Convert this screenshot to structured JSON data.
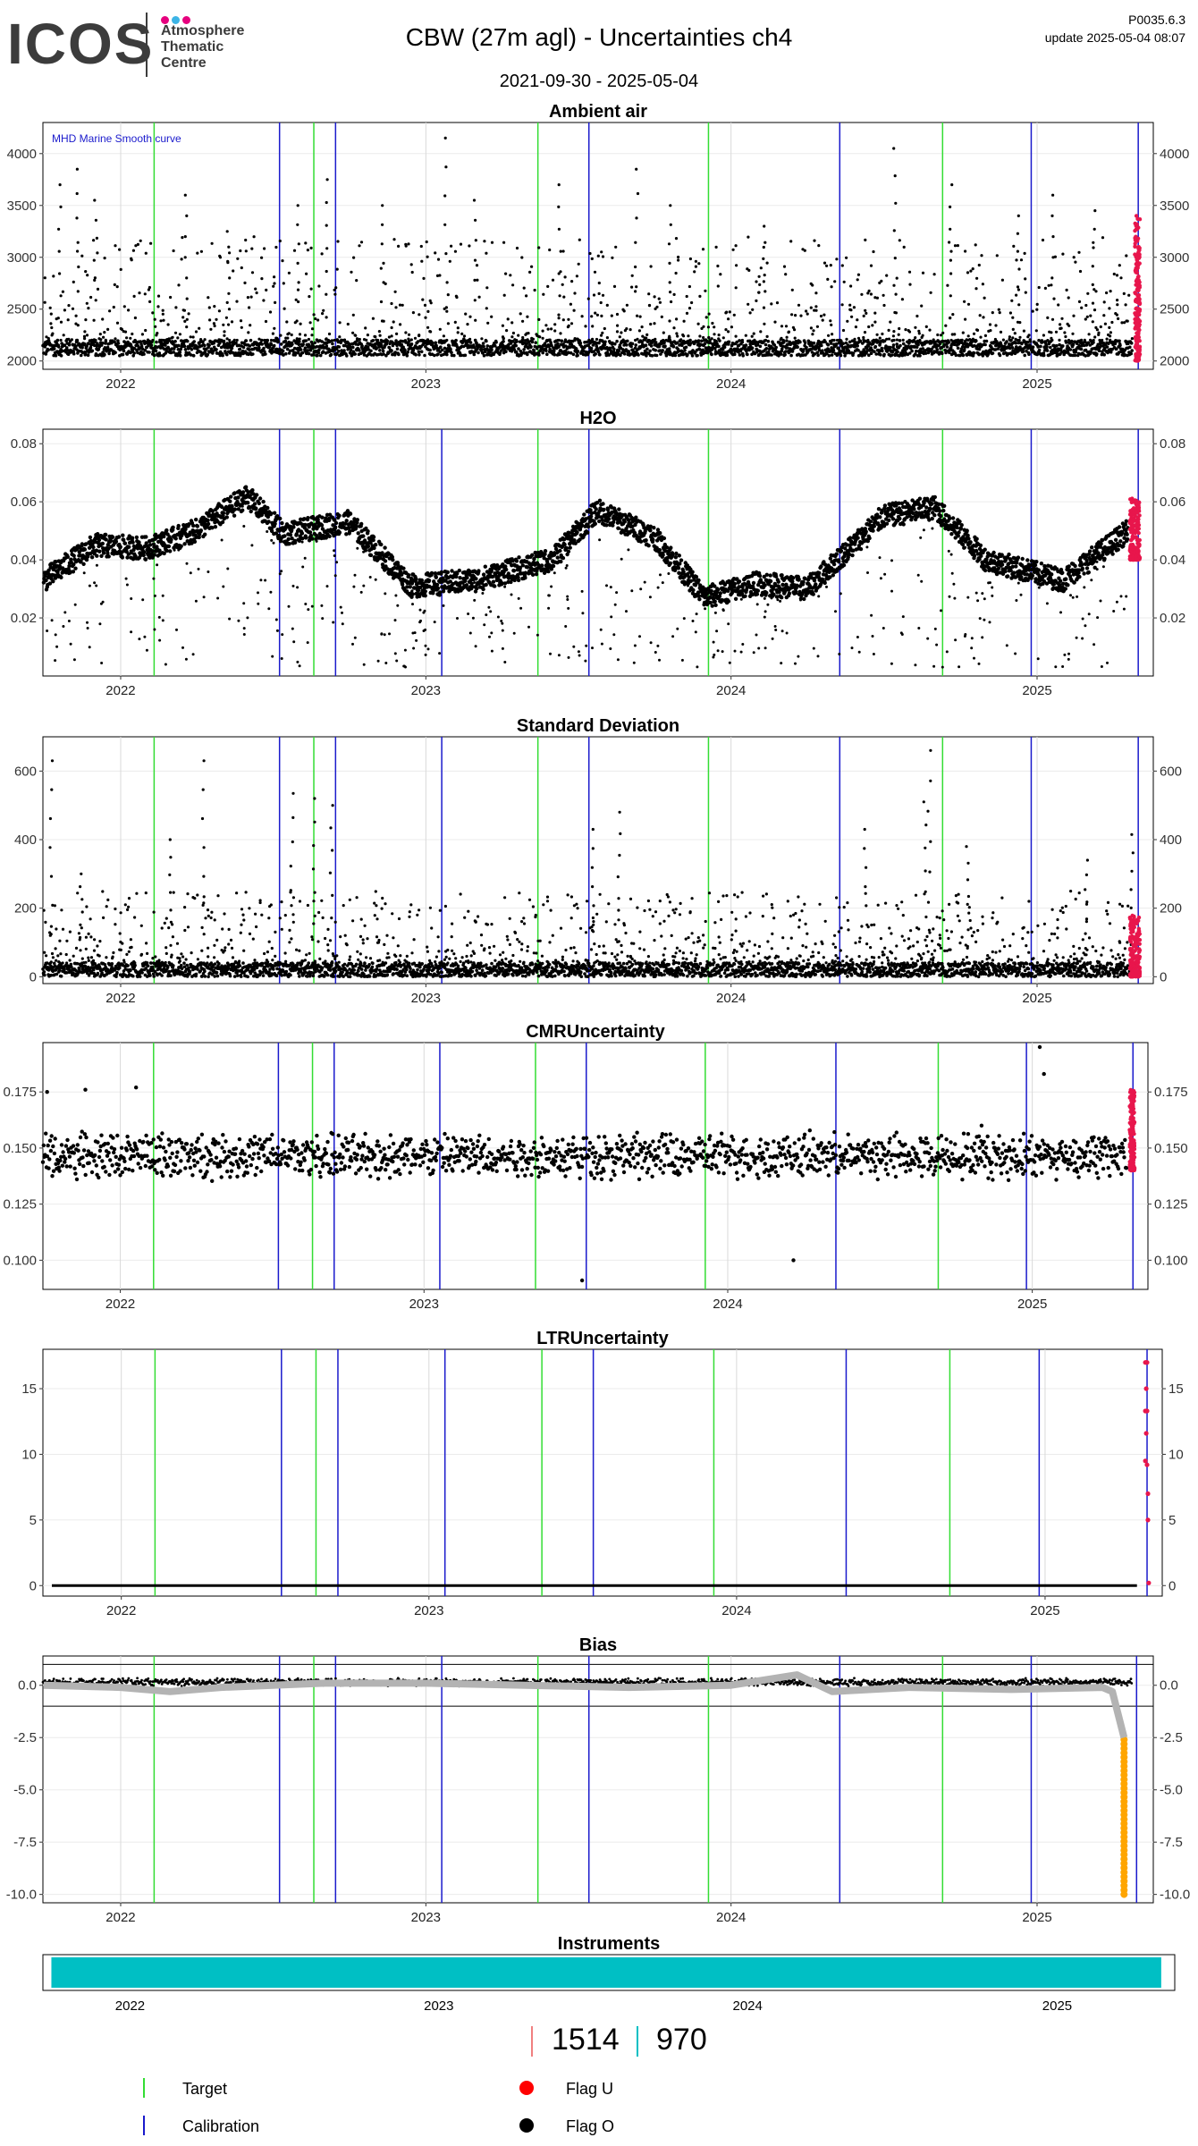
{
  "header": {
    "logo_text": "ICOS",
    "logo_sub": [
      "Atmosphere",
      "Thematic",
      "Centre"
    ],
    "title": "CBW  (27m agl) - Uncertainties ch4",
    "date_range": "2021-09-30 - 2025-05-04",
    "version": "P0035.6.3",
    "update": "update  2025-05-04 08:07"
  },
  "colors": {
    "target": "#33dd33",
    "calibration": "#1a1acc",
    "flag_u": "#ff0000",
    "flag_o": "#000000",
    "smooth_curve": "#b3b3b3",
    "bias_flag": "#ffa500",
    "instrument": "#00bfc4",
    "count_left": "#f08080",
    "count_right": "#00bfc4",
    "logo_dots": [
      "#e6007e",
      "#3cb4e6",
      "#e6007e"
    ]
  },
  "chart_data": [
    {
      "type": "scatter",
      "title": "Ambient air",
      "annotation": "MHD Marine Smooth curve",
      "xlim": [
        "2021-09-30",
        "2025-05-20"
      ],
      "ylim": [
        1920,
        4300
      ],
      "yticks": [
        2000,
        2500,
        3000,
        3500,
        4000
      ],
      "ytick_labels": [
        "2000",
        "2500",
        "3000",
        "3500",
        "4000"
      ],
      "xticks": [
        "2022-01-01",
        "2023-01-01",
        "2024-01-01",
        "2025-01-01"
      ],
      "xtick_labels": [
        "2022",
        "2023",
        "2024",
        "2025"
      ],
      "targets": [
        "2022-02-10",
        "2022-08-20",
        "2023-05-15",
        "2023-12-05",
        "2024-09-10"
      ],
      "calibrations": [
        "2022-07-10",
        "2022-09-15",
        "2023-07-15",
        "2024-05-10",
        "2024-12-25",
        "2025-05-02"
      ],
      "series": [
        {
          "name": "Flag O",
          "baseline": [
            2050,
            2200
          ],
          "spikes": [
            [
              "2021-10-20",
              3700
            ],
            [
              "2021-11-10",
              3850
            ],
            [
              "2021-12-01",
              3550
            ],
            [
              "2022-03-20",
              3600
            ],
            [
              "2022-05-10",
              3250
            ],
            [
              "2022-08-01",
              3500
            ],
            [
              "2022-09-05",
              3750
            ],
            [
              "2022-11-10",
              3500
            ],
            [
              "2023-01-25",
              4150
            ],
            [
              "2023-03-01",
              3550
            ],
            [
              "2023-06-10",
              3700
            ],
            [
              "2023-09-10",
              3850
            ],
            [
              "2023-10-20",
              3500
            ],
            [
              "2024-02-10",
              3300
            ],
            [
              "2024-07-15",
              4050
            ],
            [
              "2024-09-20",
              3700
            ],
            [
              "2024-12-10",
              3400
            ],
            [
              "2025-01-20",
              3600
            ],
            [
              "2025-03-10",
              3450
            ]
          ],
          "upper": [
            2400,
            3200
          ]
        },
        {
          "name": "Flag U",
          "range": [
            "2025-04-28",
            "2025-05-04"
          ],
          "values": [
            2000,
            3400
          ]
        }
      ]
    },
    {
      "type": "scatter",
      "title": "H2O",
      "xlim": [
        "2021-09-30",
        "2025-05-20"
      ],
      "ylim": [
        0.0,
        0.085
      ],
      "yticks": [
        0.02,
        0.04,
        0.06,
        0.08
      ],
      "ytick_labels": [
        "0.02",
        "0.04",
        "0.06",
        "0.08"
      ],
      "xticks": [
        "2022-01-01",
        "2023-01-01",
        "2024-01-01",
        "2025-01-01"
      ],
      "xtick_labels": [
        "2022",
        "2023",
        "2024",
        "2025"
      ],
      "targets": [
        "2022-02-10",
        "2022-08-20",
        "2023-05-15",
        "2023-12-05",
        "2024-09-10"
      ],
      "calibrations": [
        "2022-07-10",
        "2022-09-15",
        "2023-01-20",
        "2023-07-15",
        "2024-05-10",
        "2024-12-25",
        "2025-05-02"
      ],
      "series": [
        {
          "name": "Flag O",
          "profile": [
            [
              "2021-10-01",
              0.033
            ],
            [
              "2021-12-01",
              0.045
            ],
            [
              "2022-02-01",
              0.044
            ],
            [
              "2022-04-01",
              0.05
            ],
            [
              "2022-06-01",
              0.062
            ],
            [
              "2022-07-15",
              0.049
            ],
            [
              "2022-10-01",
              0.053
            ],
            [
              "2022-12-15",
              0.031
            ],
            [
              "2023-03-01",
              0.033
            ],
            [
              "2023-06-01",
              0.04
            ],
            [
              "2023-07-25",
              0.057
            ],
            [
              "2023-10-01",
              0.048
            ],
            [
              "2023-12-01",
              0.027
            ],
            [
              "2024-02-01",
              0.032
            ],
            [
              "2024-04-01",
              0.03
            ],
            [
              "2024-07-01",
              0.055
            ],
            [
              "2024-09-01",
              0.058
            ],
            [
              "2024-11-01",
              0.04
            ],
            [
              "2025-02-01",
              0.033
            ],
            [
              "2025-04-20",
              0.05
            ]
          ],
          "scatter_low": [
            0.003,
            0.035
          ]
        },
        {
          "name": "Flag U",
          "range": [
            "2025-04-22",
            "2025-05-04"
          ],
          "values": [
            0.04,
            0.062
          ]
        }
      ]
    },
    {
      "type": "scatter",
      "title": "Standard Deviation",
      "xlim": [
        "2021-09-30",
        "2025-05-20"
      ],
      "ylim": [
        -20,
        700
      ],
      "yticks": [
        0,
        200,
        400,
        600
      ],
      "ytick_labels": [
        "0",
        "200",
        "400",
        "600"
      ],
      "xticks": [
        "2022-01-01",
        "2023-01-01",
        "2024-01-01",
        "2025-01-01"
      ],
      "xtick_labels": [
        "2022",
        "2023",
        "2024",
        "2025"
      ],
      "targets": [
        "2022-02-10",
        "2022-08-20",
        "2023-05-15",
        "2023-12-05",
        "2024-09-10"
      ],
      "calibrations": [
        "2022-07-10",
        "2022-09-15",
        "2023-01-20",
        "2023-07-15",
        "2024-05-10",
        "2024-12-25",
        "2025-05-02"
      ],
      "series": [
        {
          "name": "Flag O",
          "baseline": [
            0,
            40
          ],
          "spikes": [
            [
              "2021-10-10",
              630
            ],
            [
              "2022-04-10",
              630
            ],
            [
              "2021-11-15",
              300
            ],
            [
              "2022-03-01",
              400
            ],
            [
              "2022-07-25",
              535
            ],
            [
              "2022-08-20",
              520
            ],
            [
              "2022-09-10",
              500
            ],
            [
              "2023-08-20",
              480
            ],
            [
              "2023-07-20",
              430
            ],
            [
              "2024-06-10",
              430
            ],
            [
              "2024-08-25",
              660
            ],
            [
              "2024-08-20",
              510
            ],
            [
              "2024-10-10",
              380
            ],
            [
              "2025-03-01",
              340
            ],
            [
              "2025-04-25",
              415
            ]
          ],
          "upper": [
            60,
            250
          ]
        },
        {
          "name": "Flag U",
          "range": [
            "2025-04-22",
            "2025-05-04"
          ],
          "values": [
            0,
            180
          ]
        }
      ]
    },
    {
      "type": "scatter",
      "title": "CMRUncertainty",
      "xlim": [
        "2021-09-30",
        "2025-05-20"
      ],
      "ylim": [
        0.087,
        0.197
      ],
      "yticks": [
        0.1,
        0.125,
        0.15,
        0.175
      ],
      "ytick_labels": [
        "0.100",
        "0.125",
        "0.150",
        "0.175"
      ],
      "xticks": [
        "2022-01-01",
        "2023-01-01",
        "2024-01-01",
        "2025-01-01"
      ],
      "xtick_labels": [
        "2022",
        "2023",
        "2024",
        "2025"
      ],
      "targets": [
        "2022-02-10",
        "2022-08-20",
        "2023-05-15",
        "2023-12-05",
        "2024-09-10"
      ],
      "calibrations": [
        "2022-07-10",
        "2022-09-15",
        "2023-01-20",
        "2023-07-15",
        "2024-05-10",
        "2024-12-25",
        "2025-05-02"
      ],
      "series": [
        {
          "name": "Flag O",
          "band": [
            0.135,
            0.158
          ],
          "outliers": [
            [
              "2021-10-05",
              0.175
            ],
            [
              "2021-11-20",
              0.176
            ],
            [
              "2022-01-20",
              0.177
            ],
            [
              "2023-07-10",
              0.091
            ],
            [
              "2024-03-20",
              0.1
            ],
            [
              "2025-01-10",
              0.195
            ],
            [
              "2025-01-15",
              0.183
            ],
            [
              "2024-11-01",
              0.16
            ]
          ]
        },
        {
          "name": "Flag U",
          "range": [
            "2025-04-28",
            "2025-05-04"
          ],
          "values": [
            0.14,
            0.176
          ]
        }
      ]
    },
    {
      "type": "scatter",
      "title": "LTRUncertainty",
      "xlim": [
        "2021-09-30",
        "2025-05-20"
      ],
      "ylim": [
        -0.8,
        18
      ],
      "yticks": [
        0,
        5,
        10,
        15
      ],
      "ytick_labels": [
        "0",
        "5",
        "10",
        "15"
      ],
      "xticks": [
        "2022-01-01",
        "2023-01-01",
        "2024-01-01",
        "2025-01-01"
      ],
      "xtick_labels": [
        "2022",
        "2023",
        "2024",
        "2025"
      ],
      "targets": [
        "2022-02-10",
        "2022-08-20",
        "2023-05-15",
        "2023-12-05",
        "2024-09-10"
      ],
      "calibrations": [
        "2022-07-10",
        "2022-09-15",
        "2023-01-20",
        "2023-07-15",
        "2024-05-10",
        "2024-12-25",
        "2025-05-02"
      ],
      "series": [
        {
          "name": "Flag O",
          "constant": 0.0
        },
        {
          "name": "Flag U",
          "points": [
            [
              "2025-04-30",
              17.0
            ],
            [
              "2025-05-01",
              17.0
            ],
            [
              "2025-05-02",
              17.0
            ],
            [
              "2025-04-30",
              13.3
            ],
            [
              "2025-05-01",
              13.3
            ],
            [
              "2025-05-02",
              13.3
            ],
            [
              "2025-05-01",
              11.6
            ],
            [
              "2025-04-30",
              9.5
            ],
            [
              "2025-05-02",
              9.2
            ],
            [
              "2025-05-03",
              7.0
            ],
            [
              "2025-05-03",
              5.0
            ],
            [
              "2025-05-04",
              0.2
            ],
            [
              "2025-05-01",
              15.0
            ]
          ]
        }
      ]
    },
    {
      "type": "line",
      "title": "Bias",
      "xlim": [
        "2021-09-30",
        "2025-05-20"
      ],
      "ylim": [
        -10.4,
        1.4
      ],
      "yticks": [
        0,
        -2.5,
        -5,
        -7.5,
        -10
      ],
      "ytick_labels": [
        "0.0",
        "-2.5",
        "-5.0",
        "-7.5",
        "-10.0"
      ],
      "hlines": [
        1,
        -1
      ],
      "xticks": [
        "2022-01-01",
        "2023-01-01",
        "2024-01-01",
        "2025-01-01"
      ],
      "xtick_labels": [
        "2022",
        "2023",
        "2024",
        "2025"
      ],
      "targets": [
        "2022-02-10",
        "2022-08-20",
        "2023-05-15",
        "2023-12-05",
        "2024-09-10"
      ],
      "calibrations": [
        "2022-07-10",
        "2022-09-15",
        "2023-01-20",
        "2023-07-15",
        "2024-05-10",
        "2024-12-25",
        "2025-04-30"
      ],
      "series": [
        {
          "name": "Smooth curve",
          "points": [
            [
              "2021-10-01",
              0.0
            ],
            [
              "2022-01-01",
              -0.1
            ],
            [
              "2022-03-01",
              -0.3
            ],
            [
              "2022-05-01",
              -0.1
            ],
            [
              "2022-09-01",
              0.1
            ],
            [
              "2023-01-01",
              0.1
            ],
            [
              "2023-05-01",
              0.0
            ],
            [
              "2023-09-01",
              -0.1
            ],
            [
              "2024-01-01",
              0.0
            ],
            [
              "2024-03-20",
              0.5
            ],
            [
              "2024-05-01",
              -0.3
            ],
            [
              "2024-08-01",
              -0.1
            ],
            [
              "2024-12-01",
              -0.2
            ],
            [
              "2025-03-20",
              -0.1
            ],
            [
              "2025-04-01",
              -0.3
            ],
            [
              "2025-04-15",
              -2.5
            ]
          ]
        },
        {
          "name": "Flag O",
          "band": [
            -0.05,
            0.35
          ]
        },
        {
          "name": "Flag U",
          "range": [
            "2025-04-15",
            "2025-04-15"
          ],
          "values": [
            -10.0,
            -2.6
          ]
        }
      ]
    },
    {
      "type": "bar",
      "title": "Instruments",
      "xlim": [
        "2021-09-20",
        "2025-05-20"
      ],
      "xticks": [
        "2022-01-01",
        "2023-01-01",
        "2024-01-01",
        "2025-01-01"
      ],
      "xtick_labels": [
        "2022",
        "2023",
        "2024",
        "2025"
      ],
      "bars": [
        {
          "start": "2021-09-30",
          "end": "2025-05-04"
        }
      ]
    }
  ],
  "counts": {
    "left": "1514",
    "right": "970"
  },
  "legend": {
    "target": "Target",
    "calibration": "Calibration",
    "flag_u": "Flag U",
    "flag_o": "Flag O"
  }
}
